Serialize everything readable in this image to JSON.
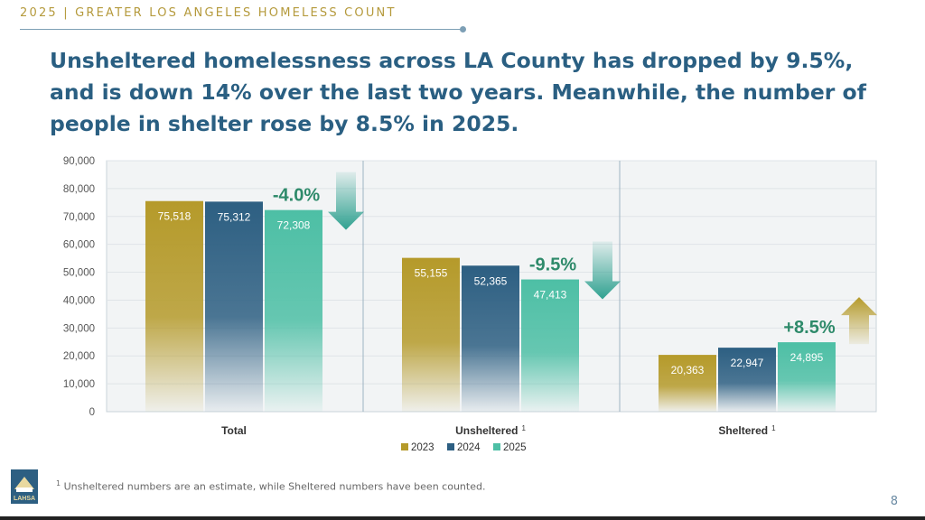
{
  "header": {
    "title": "2025 | GREATER LOS ANGELES HOMELESS COUNT"
  },
  "headline": "Unsheltered homelessness across LA County has dropped by 9.5%, and is down 14% over the last two years. Meanwhile, the number of people in shelter rose by 8.5% in 2025.",
  "footnote": {
    "marker": "1",
    "text": "Unsheltered numbers are an estimate, while Sheltered numbers have been counted."
  },
  "page_number": "8",
  "logo": {
    "text": "LAHSA"
  },
  "colors": {
    "2023": "#b59a2a",
    "2024": "#2d5f82",
    "2025": "#4dbfa5",
    "down_arrow": "#2fa190",
    "up_arrow": "#b59a2a",
    "change_text": "#2e8a6a"
  },
  "chart_data": {
    "type": "bar",
    "categories": [
      "Total",
      "Unsheltered",
      "Sheltered"
    ],
    "category_superscripts": [
      "",
      "1",
      "1"
    ],
    "series": [
      {
        "name": "2023",
        "values": [
          75518,
          55155,
          20363
        ],
        "labels": [
          "75,518",
          "55,155",
          "20,363"
        ]
      },
      {
        "name": "2024",
        "values": [
          75312,
          52365,
          22947
        ],
        "labels": [
          "75,312",
          "52,365",
          "22,947"
        ]
      },
      {
        "name": "2025",
        "values": [
          72308,
          47413,
          24895
        ],
        "labels": [
          "72,308",
          "47,413",
          "24,895"
        ]
      }
    ],
    "yticks": [
      0,
      10000,
      20000,
      30000,
      40000,
      50000,
      60000,
      70000,
      80000,
      90000
    ],
    "ytick_labels": [
      "0",
      "10,000",
      "20,000",
      "30,000",
      "40,000",
      "50,000",
      "60,000",
      "70,000",
      "80,000",
      "90,000"
    ],
    "ylim": [
      0,
      90000
    ],
    "annotations": [
      {
        "category": "Total",
        "text": "-4.0%",
        "direction": "down"
      },
      {
        "category": "Unsheltered",
        "text": "-9.5%",
        "direction": "down"
      },
      {
        "category": "Sheltered",
        "text": "+8.5%",
        "direction": "up"
      }
    ],
    "legend_position": "bottom-center",
    "grid": true
  }
}
